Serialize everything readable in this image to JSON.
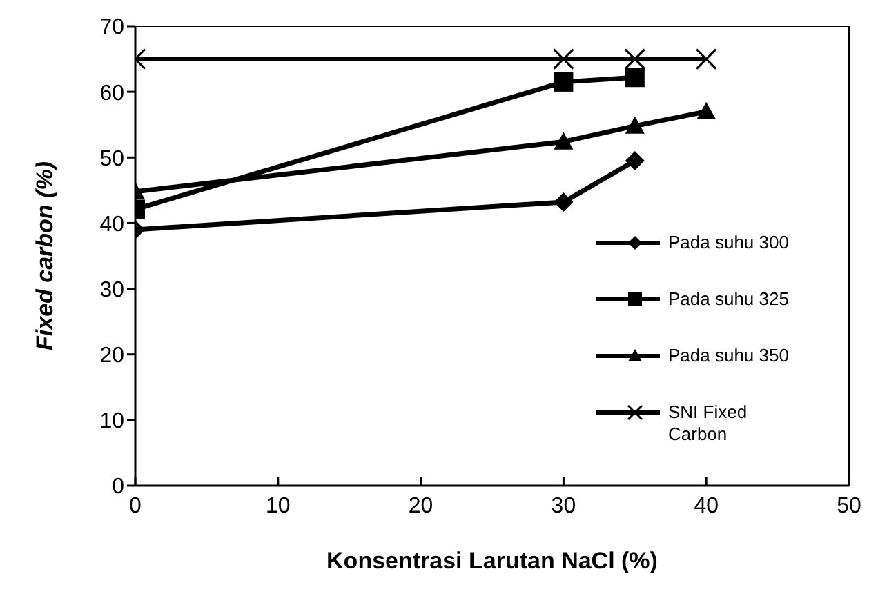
{
  "chart_data": {
    "type": "line",
    "xlabel": "Konsentrasi Larutan NaCl (%)",
    "ylabel": "Fixed carbon (%)",
    "xlim": [
      0,
      50
    ],
    "xticks": [
      0,
      10,
      20,
      30,
      40,
      50
    ],
    "ylim": [
      0,
      70
    ],
    "yticks": [
      0,
      10,
      20,
      30,
      40,
      50,
      60,
      70
    ],
    "legend": "right",
    "line_style": "solid",
    "series": [
      {
        "name": "Pada suhu 300",
        "color": "#000000",
        "marker": "diamond",
        "x": [
          0,
          30,
          35
        ],
        "values": [
          39,
          43.2,
          49.5
        ]
      },
      {
        "name": "Pada suhu 325",
        "color": "#000000",
        "marker": "square",
        "x": [
          0,
          30,
          35
        ],
        "values": [
          42.1,
          61.5,
          62.2
        ]
      },
      {
        "name": "Pada suhu 350",
        "color": "#000000",
        "marker": "triangle",
        "x": [
          0,
          30,
          35,
          40
        ],
        "values": [
          44.8,
          52.4,
          54.8,
          57
        ]
      },
      {
        "name": "SNI Fixed Carbon",
        "color": "#000000",
        "marker": "cross",
        "x": [
          0,
          30,
          35,
          40
        ],
        "values": [
          65,
          65,
          65,
          65
        ]
      }
    ]
  }
}
